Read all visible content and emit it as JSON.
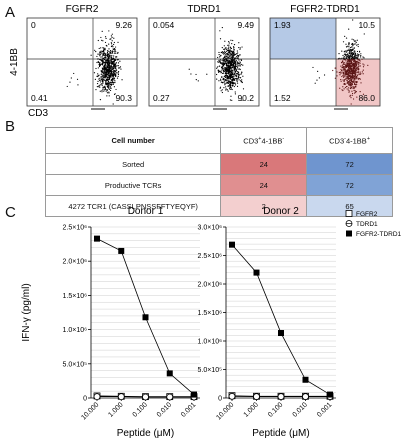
{
  "panelA": {
    "letter": "A",
    "ylabel": "4-1BB",
    "xlabel": "CD3",
    "plots": [
      {
        "title": "FGFR2",
        "q_ul": "0",
        "q_ur": "9.26",
        "q_ll": "0.41",
        "q_lr": "90.3"
      },
      {
        "title": "TDRD1",
        "q_ul": "0.054",
        "q_ur": "9.49",
        "q_ll": "0.27",
        "q_lr": "90.2"
      },
      {
        "title": "FGFR2-TDRD1",
        "q_ul": "1.93",
        "q_ur": "10.5",
        "q_ll": "1.52",
        "q_lr": "86.0"
      }
    ],
    "colors": {
      "gate_blue": "#b5c9e6",
      "gate_pink": "#f1c6c6"
    }
  },
  "panelB": {
    "letter": "B",
    "header": [
      "Cell number",
      "CD3+4-1BB-",
      "CD3-4-1BB+"
    ],
    "rows": [
      {
        "label": "Sorted",
        "a": "24",
        "b": "72"
      },
      {
        "label": "Productive TCRs",
        "a": "24",
        "b": "72"
      },
      {
        "label": "4272 TCR1 (CASSLPNSSFFTYEQYF)",
        "a": "2",
        "b": "65"
      }
    ],
    "colors": {
      "red_strong": "#d9787a",
      "red_light": "#f3cfcf",
      "blue_strong": "#6f95cf",
      "blue_light": "#c9d8ee"
    }
  },
  "panelC": {
    "letter": "C",
    "legend": [
      "FGFR2",
      "TDRD1",
      "FGFR2-TDRD1"
    ]
  },
  "chart_data": [
    {
      "type": "line",
      "title": "Donor 1",
      "xlabel": "Peptide (μM)",
      "ylabel": "IFN-γ (pg/ml)",
      "categories": [
        "10.000",
        "1.000",
        "0.100",
        "0.010",
        "0.001"
      ],
      "ylim": [
        0,
        2500000
      ],
      "yticks": [
        "0",
        "5.0×10⁵",
        "1.0×10⁶",
        "1.5×10⁶",
        "2.0×10⁶",
        "2.5×10⁶"
      ],
      "grid": true,
      "series": [
        {
          "name": "FGFR2",
          "values": [
            30000,
            25000,
            20000,
            20000,
            20000
          ]
        },
        {
          "name": "TDRD1",
          "values": [
            20000,
            20000,
            15000,
            15000,
            15000
          ]
        },
        {
          "name": "FGFR2-TDRD1",
          "values": [
            2330000,
            2150000,
            1180000,
            360000,
            50000
          ]
        }
      ]
    },
    {
      "type": "line",
      "title": "Donor 2",
      "xlabel": "Peptide (μM)",
      "ylabel": "",
      "categories": [
        "10.000",
        "1.000",
        "0.100",
        "0.010",
        "0.001"
      ],
      "ylim": [
        0,
        3000000
      ],
      "yticks": [
        "0",
        "5.0×10⁵",
        "1.0×10⁶",
        "1.5×10⁶",
        "2.0×10⁶",
        "2.5×10⁶",
        "3.0×10⁶"
      ],
      "grid": true,
      "series": [
        {
          "name": "FGFR2",
          "values": [
            40000,
            30000,
            30000,
            30000,
            30000
          ]
        },
        {
          "name": "TDRD1",
          "values": [
            30000,
            25000,
            25000,
            25000,
            25000
          ]
        },
        {
          "name": "FGFR2-TDRD1",
          "values": [
            2690000,
            2200000,
            1140000,
            320000,
            60000
          ]
        }
      ]
    }
  ]
}
